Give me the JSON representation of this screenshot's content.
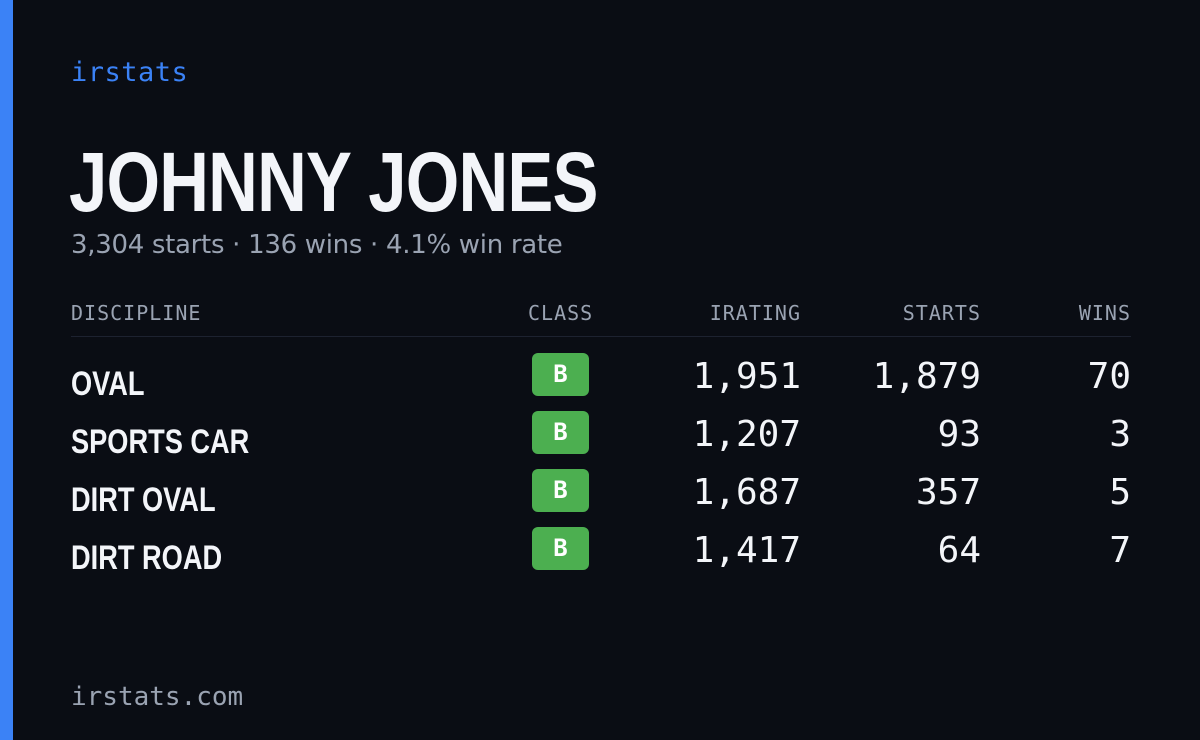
{
  "brand": "irstats",
  "player": {
    "name": "JOHNNY JONES",
    "summary": "3,304 starts · 136 wins · 4.1% win rate"
  },
  "table": {
    "headers": {
      "discipline": "DISCIPLINE",
      "class": "CLASS",
      "irating": "IRATING",
      "starts": "STARTS",
      "wins": "WINS"
    },
    "rows": [
      {
        "discipline": "OVAL",
        "class": "B",
        "irating": "1,951",
        "starts": "1,879",
        "wins": "70"
      },
      {
        "discipline": "SPORTS CAR",
        "class": "B",
        "irating": "1,207",
        "starts": "93",
        "wins": "3"
      },
      {
        "discipline": "DIRT OVAL",
        "class": "B",
        "irating": "1,687",
        "starts": "357",
        "wins": "5"
      },
      {
        "discipline": "DIRT ROAD",
        "class": "B",
        "irating": "1,417",
        "starts": "64",
        "wins": "7"
      }
    ]
  },
  "footer": {
    "domain": "irstats.com"
  },
  "colors": {
    "background": "#0a0d14",
    "accent": "#3b82f6",
    "class_b": "#4caf50",
    "muted_text": "#9aa3b2",
    "primary_text": "#f3f5f9"
  }
}
